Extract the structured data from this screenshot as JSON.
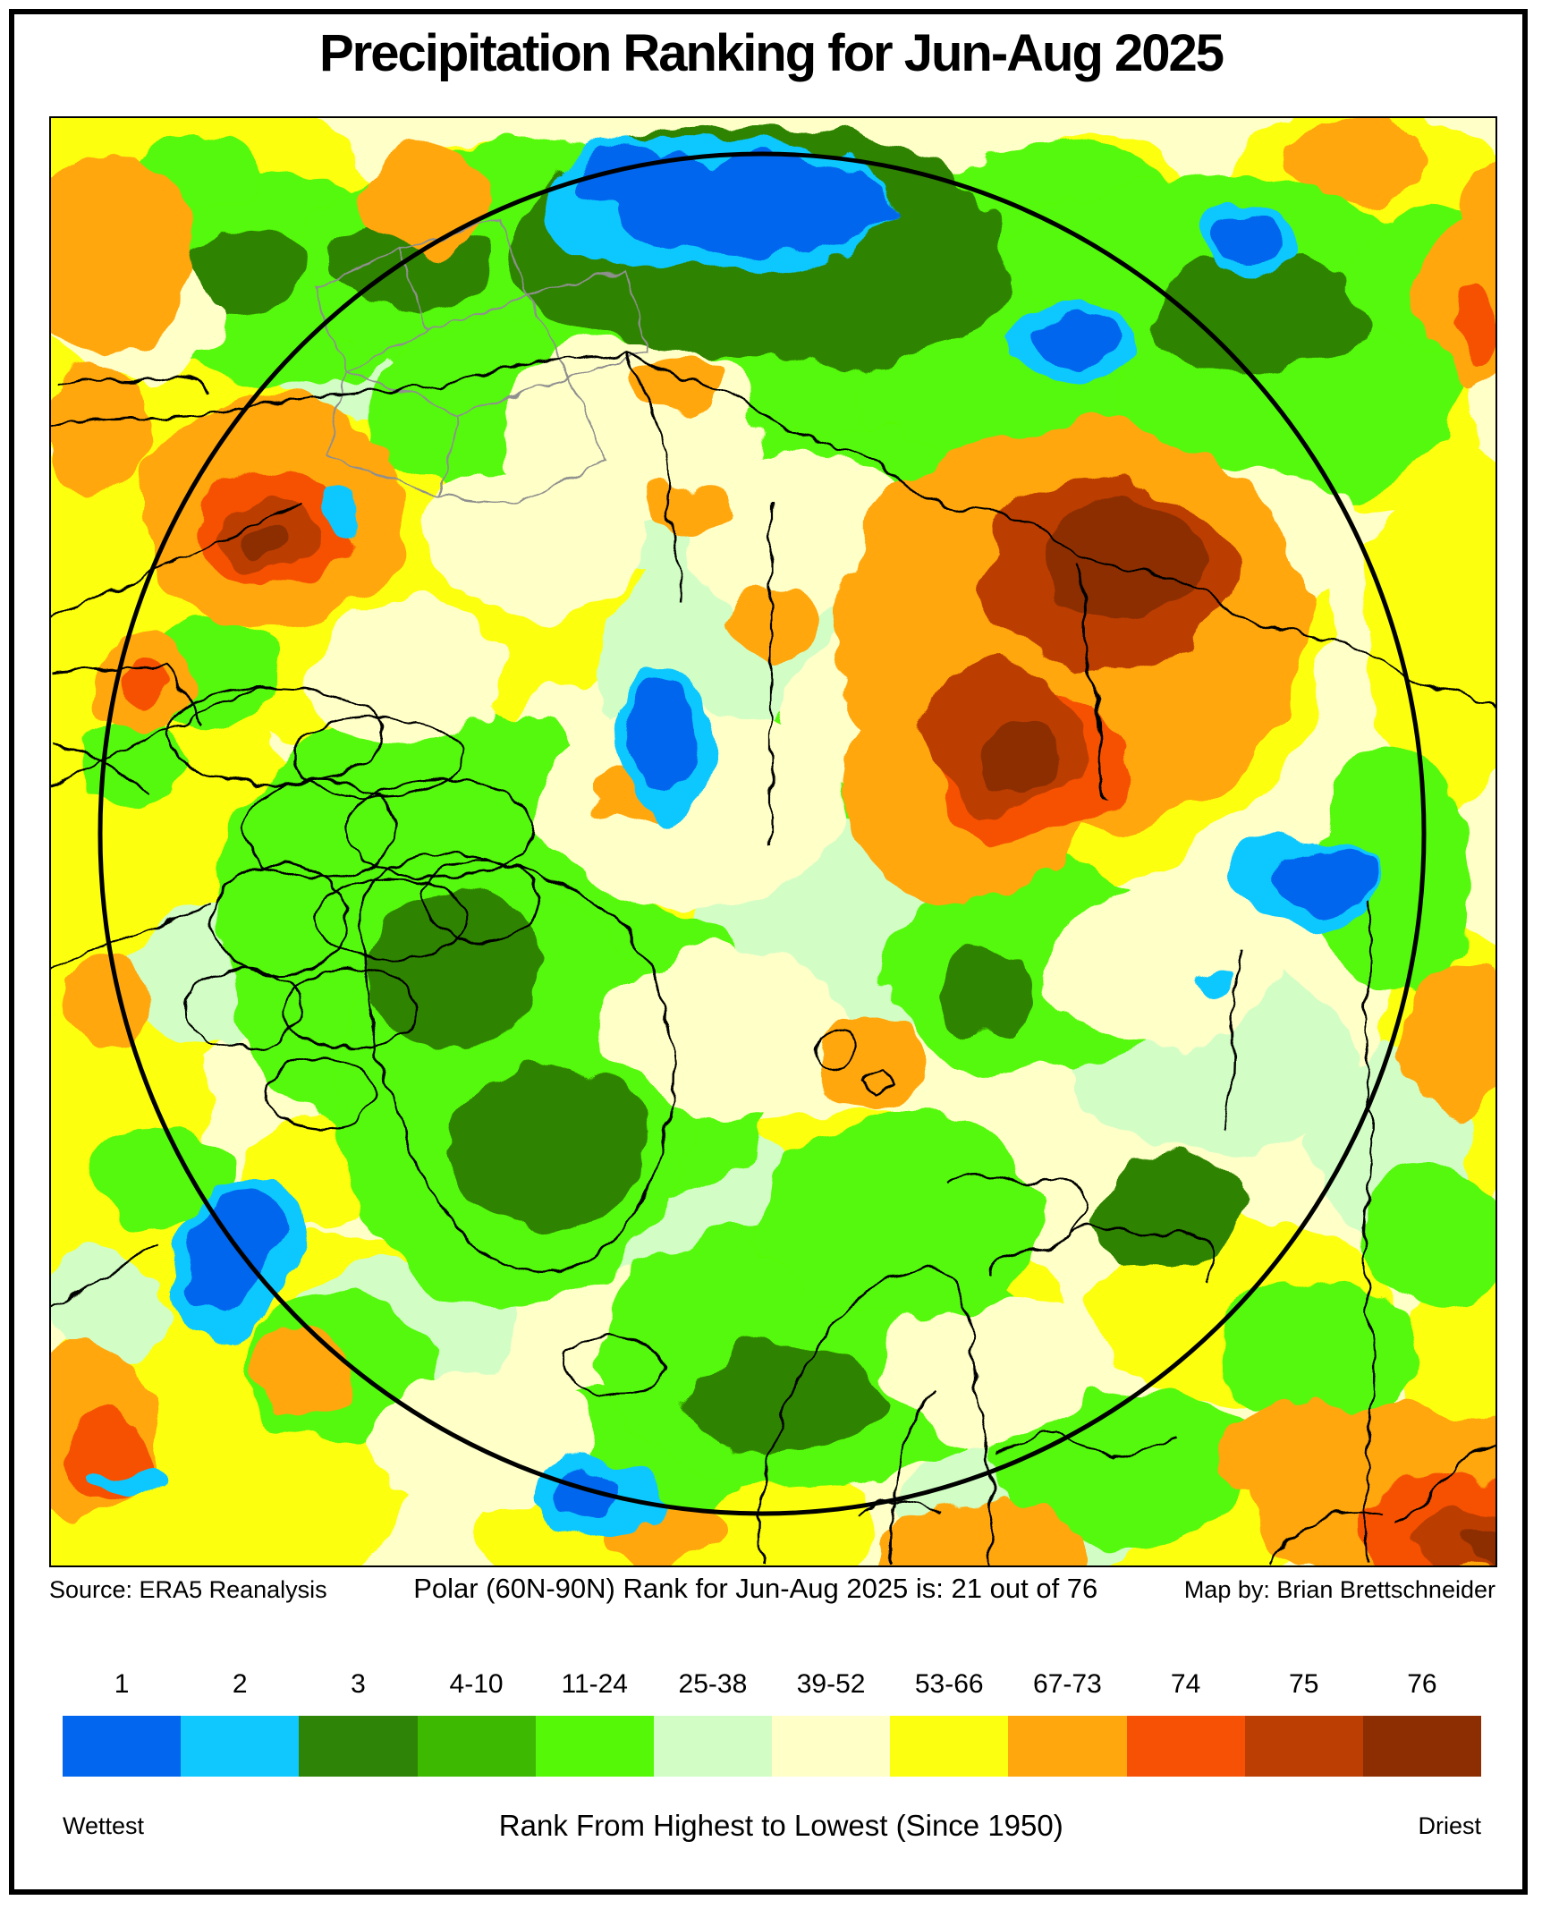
{
  "title": "Precipitation Ranking for Jun-Aug 2025",
  "captions": {
    "left": "Source: ERA5 Reanalysis",
    "center": "Polar (60N-90N) Rank for Jun-Aug 2025 is: 21 out of 76",
    "right": "Map by: Brian Brettschneider"
  },
  "legend": {
    "items": [
      {
        "label": "1",
        "color": "#0266EE"
      },
      {
        "label": "2",
        "color": "#11C8FE"
      },
      {
        "label": "3",
        "color": "#2E8406"
      },
      {
        "label": "4-10",
        "color": "#3EB902"
      },
      {
        "label": "11-24",
        "color": "#55F907"
      },
      {
        "label": "25-38",
        "color": "#D2FEC5"
      },
      {
        "label": "39-52",
        "color": "#FFFFC8"
      },
      {
        "label": "53-66",
        "color": "#FCFF0F"
      },
      {
        "label": "67-73",
        "color": "#FFA70D"
      },
      {
        "label": "74",
        "color": "#F65104"
      },
      {
        "label": "75",
        "color": "#BC3E03"
      },
      {
        "label": "76",
        "color": "#8C2E01"
      }
    ],
    "left_label": "Wettest",
    "center_label": "Rank From Highest to Lowest (Since 1950)",
    "right_label": "Driest"
  }
}
